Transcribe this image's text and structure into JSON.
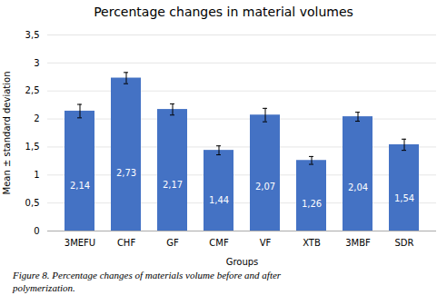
{
  "chart_data": {
    "type": "bar",
    "title": "Percentage changes in material volumes",
    "xlabel": "Groups",
    "ylabel": "Mean ± standard deviation",
    "categories": [
      "3MEFU",
      "CHF",
      "GF",
      "CMF",
      "VF",
      "XTB",
      "3MBF",
      "SDR"
    ],
    "values": [
      2.14,
      2.73,
      2.17,
      1.44,
      2.07,
      1.26,
      2.04,
      1.54
    ],
    "errors": [
      0.12,
      0.1,
      0.1,
      0.08,
      0.12,
      0.07,
      0.08,
      0.1
    ],
    "value_labels": [
      "2,14",
      "2,73",
      "2,17",
      "1,44",
      "2,07",
      "1,26",
      "2,04",
      "1,54"
    ],
    "data_labels": true,
    "color": "#4472C4",
    "ylim": [
      0,
      3.5
    ],
    "yticks": [
      0,
      {
        "value": 0.5,
        "label": "0,5"
      },
      1,
      {
        "value": 1.5,
        "label": "1,5"
      },
      2,
      {
        "value": 2.5,
        "label": "2,5"
      },
      3,
      {
        "value": 3.5,
        "label": "3,5"
      }
    ],
    "grid": true,
    "caption": [
      "Figure 8. Percentage changes of materials volume before and after",
      "polymerization."
    ]
  }
}
